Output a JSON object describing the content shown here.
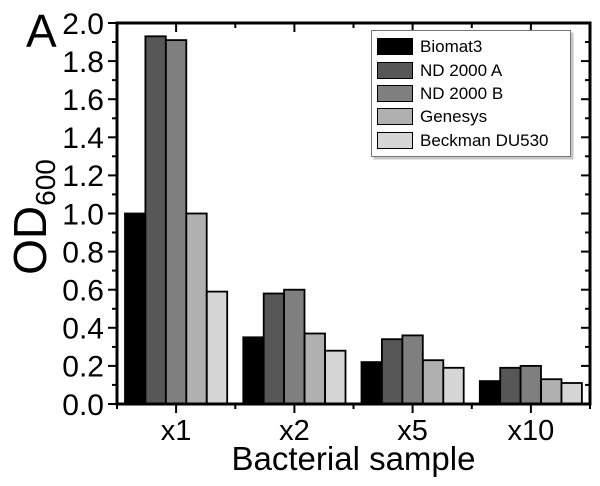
{
  "panel_label": "A",
  "chart_data": {
    "type": "bar",
    "title": "",
    "xlabel": "Bacterial sample",
    "ylabel": "OD",
    "ylabel_subscript": "600",
    "categories": [
      "x1",
      "x2",
      "x5",
      "x10"
    ],
    "series": [
      {
        "name": "Biomat3",
        "color": "#000000",
        "values": [
          1.0,
          0.35,
          0.22,
          0.12
        ]
      },
      {
        "name": "ND 2000 A",
        "color": "#575757",
        "values": [
          1.93,
          0.58,
          0.34,
          0.19
        ]
      },
      {
        "name": "ND 2000 B",
        "color": "#7f7f7f",
        "values": [
          1.91,
          0.6,
          0.36,
          0.2
        ]
      },
      {
        "name": "Genesys",
        "color": "#b0b0b0",
        "values": [
          1.0,
          0.37,
          0.23,
          0.13
        ]
      },
      {
        "name": "Beckman DU530",
        "color": "#d6d6d6",
        "values": [
          0.59,
          0.28,
          0.19,
          0.11
        ]
      }
    ],
    "ylim": [
      0.0,
      2.0
    ],
    "ytick_step": 0.2,
    "yminor_step": 0.1,
    "grid": false,
    "legend_position": "top-right",
    "bar_edge_color": "#000000",
    "axis_color": "#000000",
    "background_color": "#ffffff"
  }
}
